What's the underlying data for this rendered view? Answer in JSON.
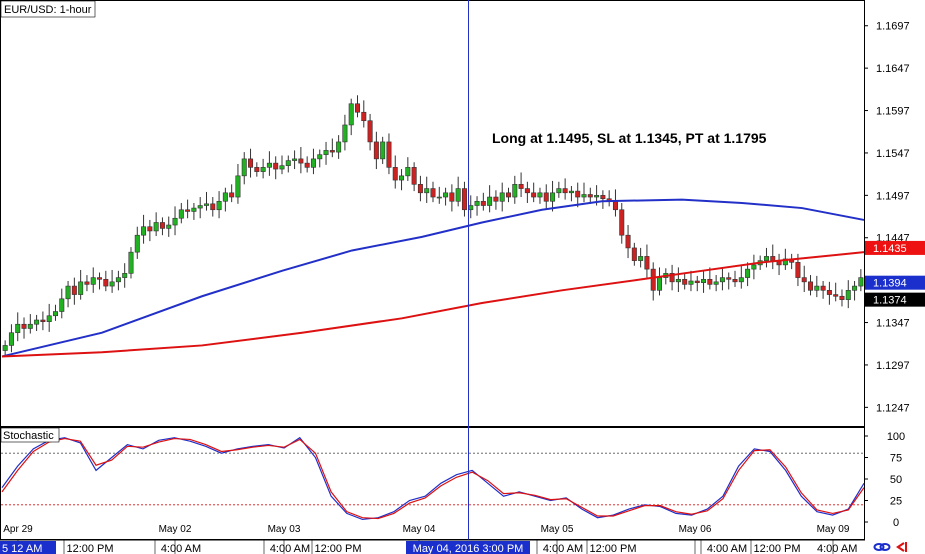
{
  "chart_title": "EUR/USD: 1-hour",
  "annotation": "Long at 1.1495, SL at 1.1345, PT at 1.1795",
  "colors": {
    "bull": "#22b122",
    "bear": "#cc2222",
    "ma_fast": "#2230c8",
    "ma_slow": "#dd1111",
    "stoch_k": "#2230c8",
    "stoch_d": "#dd1111",
    "crosshair": "#2230c8",
    "price_red": "#ee1111",
    "price_blue": "#1a2fcc",
    "price_black": "#000000"
  },
  "price_labels": [
    {
      "text": "1.1435",
      "value": 1.1435,
      "color": "price_red"
    },
    {
      "text": "1.1394",
      "value": 1.1394,
      "color": "price_blue"
    },
    {
      "text": "1.1374",
      "value": 1.1374,
      "color": "price_black"
    }
  ],
  "stochastic": {
    "label": "Stochastic",
    "levels": [
      80,
      20
    ],
    "y_ticks": [
      "100",
      "75",
      "50",
      "25",
      "0"
    ]
  },
  "date_labels": [
    "Apr 29",
    "May 02",
    "May 03",
    "May 04",
    "May 05",
    "May 06",
    "May 09"
  ],
  "time_labels": [
    "12:00 PM",
    "4:00 AM",
    "4:00 AM",
    "12:00 PM",
    "4:00 AM",
    "12:00 PM",
    "4:00 AM",
    "12:00 PM",
    "4:00 AM"
  ],
  "time_label_partial_left": "5 12 AM",
  "time_label_partial_right": "4:00 AM",
  "crosshair_time_label": "May 04, 2016 3:00 PM",
  "footer_icons": [
    "chain-link-icon",
    "arrow-back-icon"
  ],
  "chart_data": [
    {
      "type": "candlestick",
      "title": "EUR/USD: 1-hour",
      "y_ticks": [
        1.1697,
        1.1647,
        1.1597,
        1.1547,
        1.1497,
        1.1447,
        1.1347,
        1.1297,
        1.1247
      ],
      "ylim": [
        1.1225,
        1.1725
      ],
      "x_sessions": [
        "Apr 29",
        "May 02",
        "May 03",
        "May 04",
        "May 05",
        "May 06",
        "May 09"
      ],
      "close_series": [
        1.132,
        1.1335,
        1.1345,
        1.134,
        1.1345,
        1.135,
        1.1348,
        1.1355,
        1.136,
        1.1375,
        1.139,
        1.138,
        1.1395,
        1.1392,
        1.14,
        1.1398,
        1.139,
        1.1395,
        1.14,
        1.1405,
        1.143,
        1.145,
        1.146,
        1.1455,
        1.1465,
        1.1458,
        1.1462,
        1.147,
        1.148,
        1.1478,
        1.1482,
        1.1485,
        1.1487,
        1.148,
        1.149,
        1.15,
        1.1495,
        1.152,
        1.154,
        1.153,
        1.1525,
        1.153,
        1.1535,
        1.1528,
        1.1532,
        1.1538,
        1.154,
        1.1535,
        1.153,
        1.154,
        1.1545,
        1.155,
        1.1548,
        1.156,
        1.158,
        1.1605,
        1.1595,
        1.1585,
        1.156,
        1.154,
        1.156,
        1.153,
        1.1515,
        1.152,
        1.153,
        1.151,
        1.15,
        1.1505,
        1.1495,
        1.1495,
        1.15,
        1.149,
        1.1505,
        1.148,
        1.1485,
        1.149,
        1.1485,
        1.1495,
        1.149,
        1.15,
        1.1495,
        1.151,
        1.1505,
        1.15,
        1.1495,
        1.15,
        1.149,
        1.15,
        1.1505,
        1.15,
        1.1502,
        1.1495,
        1.1498,
        1.1495,
        1.1497,
        1.1493,
        1.149,
        1.148,
        1.145,
        1.1435,
        1.142,
        1.1425,
        1.141,
        1.1385,
        1.14,
        1.1405,
        1.1395,
        1.1398,
        1.1392,
        1.1396,
        1.1394,
        1.1398,
        1.1392,
        1.1395,
        1.14,
        1.1398,
        1.1395,
        1.14,
        1.141,
        1.1415,
        1.142,
        1.1425,
        1.142,
        1.1415,
        1.1422,
        1.1418,
        1.14,
        1.1395,
        1.1385,
        1.139,
        1.1385,
        1.138,
        1.1378,
        1.1374,
        1.1385,
        1.139,
        1.14
      ],
      "moving_averages": [
        {
          "name": "",
          "color": "ma_fast",
          "points": [
            [
              0,
              1.1307
            ],
            [
              100,
              1.1335
            ],
            [
              200,
              1.1378
            ],
            [
              280,
              1.1408
            ],
            [
              350,
              1.1432
            ],
            [
              420,
              1.1448
            ],
            [
              480,
              1.1465
            ],
            [
              540,
              1.148
            ],
            [
              600,
              1.149
            ],
            [
              680,
              1.1492
            ],
            [
              740,
              1.1488
            ],
            [
              800,
              1.1482
            ],
            [
              862,
              1.1468
            ]
          ]
        },
        {
          "name": "",
          "color": "ma_slow",
          "points": [
            [
              0,
              1.1307
            ],
            [
              100,
              1.1312
            ],
            [
              200,
              1.132
            ],
            [
              300,
              1.1335
            ],
            [
              400,
              1.1352
            ],
            [
              480,
              1.137
            ],
            [
              560,
              1.1385
            ],
            [
              640,
              1.1398
            ],
            [
              700,
              1.1408
            ],
            [
              760,
              1.1418
            ],
            [
              820,
              1.1425
            ],
            [
              862,
              1.143
            ]
          ]
        }
      ]
    },
    {
      "type": "line",
      "title": "Stochastic",
      "ylim": [
        0,
        100
      ],
      "levels": [
        80,
        20
      ],
      "series": [
        {
          "name": "",
          "color": "stoch_k",
          "values": [
            40,
            65,
            85,
            95,
            98,
            92,
            60,
            75,
            90,
            85,
            95,
            98,
            94,
            88,
            80,
            85,
            88,
            90,
            86,
            98,
            75,
            30,
            10,
            3,
            5,
            12,
            25,
            30,
            45,
            55,
            60,
            45,
            30,
            35,
            30,
            25,
            28,
            15,
            5,
            8,
            15,
            20,
            18,
            10,
            8,
            15,
            30,
            65,
            85,
            82,
            60,
            30,
            12,
            8,
            15,
            45
          ]
        },
        {
          "name": "",
          "color": "stoch_d",
          "values": [
            35,
            60,
            82,
            93,
            97,
            94,
            66,
            72,
            88,
            87,
            93,
            97,
            96,
            90,
            82,
            84,
            87,
            89,
            87,
            96,
            80,
            35,
            12,
            5,
            4,
            10,
            22,
            28,
            42,
            52,
            58,
            48,
            33,
            34,
            31,
            26,
            27,
            17,
            7,
            7,
            13,
            19,
            19,
            12,
            9,
            13,
            27,
            60,
            83,
            84,
            64,
            34,
            14,
            10,
            14,
            40
          ]
        }
      ]
    }
  ]
}
